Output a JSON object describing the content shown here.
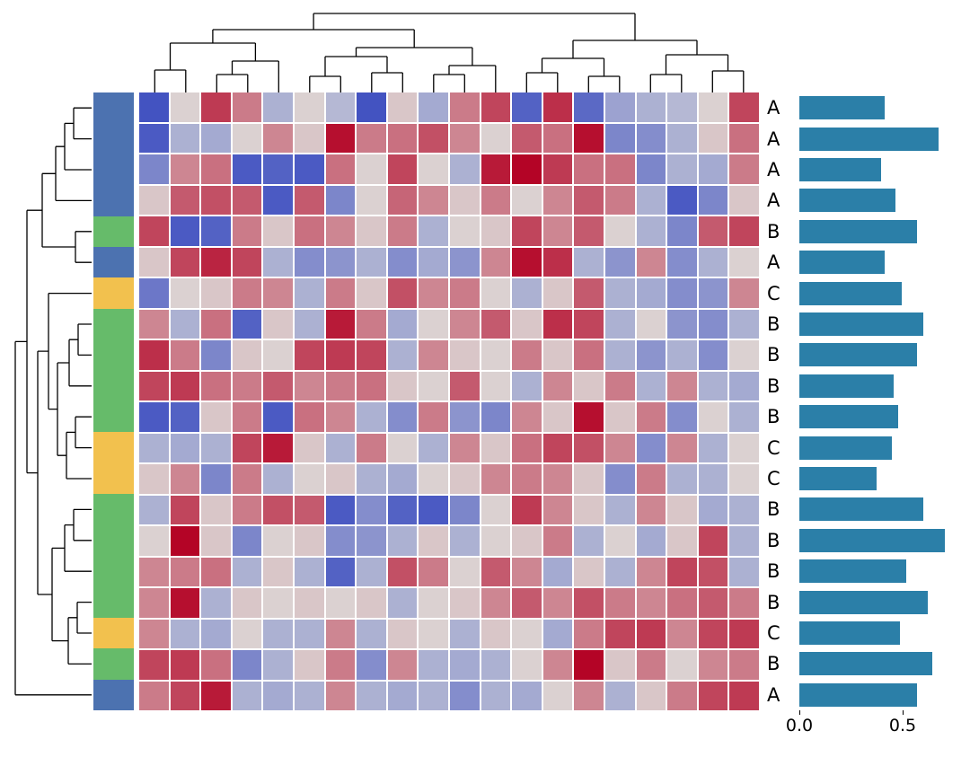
{
  "chart_data": {
    "type": "clustermap",
    "title": "",
    "heatmap": {
      "type": "heatmap",
      "n_rows": 20,
      "n_cols": 20,
      "colormap": "coolwarm",
      "vmin": -1,
      "vmax": 1,
      "values": [
        [
          -0.95,
          0.05,
          0.75,
          0.45,
          -0.3,
          0.05,
          -0.25,
          -0.95,
          0.1,
          -0.35,
          0.45,
          0.7,
          -0.85,
          0.8,
          -0.8,
          -0.4,
          -0.3,
          -0.25,
          0.05,
          0.7
        ],
        [
          -0.9,
          -0.3,
          -0.35,
          0.05,
          0.4,
          0.1,
          0.95,
          0.45,
          0.5,
          0.65,
          0.4,
          0.05,
          0.6,
          0.5,
          0.95,
          -0.6,
          -0.55,
          -0.3,
          0.1,
          0.5
        ],
        [
          -0.6,
          0.4,
          0.5,
          -0.9,
          -0.85,
          -0.9,
          0.5,
          0.05,
          0.7,
          0.05,
          -0.3,
          0.9,
          1.0,
          0.75,
          0.5,
          0.5,
          -0.6,
          -0.3,
          -0.35,
          0.45
        ],
        [
          0.1,
          0.6,
          0.65,
          0.6,
          -0.9,
          0.6,
          -0.6,
          0.05,
          0.55,
          0.4,
          0.1,
          0.45,
          0.05,
          0.4,
          0.6,
          0.45,
          -0.3,
          -0.9,
          -0.6,
          0.1
        ],
        [
          0.7,
          -0.9,
          -0.85,
          0.45,
          0.1,
          0.5,
          0.4,
          0.1,
          0.45,
          -0.3,
          0.05,
          0.1,
          0.7,
          0.4,
          0.6,
          0.05,
          -0.3,
          -0.6,
          0.6,
          0.7
        ],
        [
          0.1,
          0.7,
          0.85,
          0.7,
          -0.3,
          -0.55,
          -0.5,
          -0.3,
          -0.55,
          -0.35,
          -0.5,
          0.4,
          0.95,
          0.8,
          -0.3,
          -0.5,
          0.4,
          -0.55,
          -0.3,
          0.05
        ],
        [
          -0.7,
          0.05,
          0.1,
          0.45,
          0.4,
          -0.3,
          0.45,
          0.1,
          0.65,
          0.4,
          0.45,
          0.05,
          -0.3,
          0.1,
          0.6,
          -0.3,
          -0.35,
          -0.55,
          -0.5,
          0.4
        ],
        [
          0.4,
          -0.3,
          0.5,
          -0.85,
          0.1,
          -0.3,
          0.9,
          0.45,
          -0.35,
          0.05,
          0.4,
          0.6,
          0.1,
          0.8,
          0.7,
          -0.3,
          0.05,
          -0.5,
          -0.55,
          -0.3
        ],
        [
          0.8,
          0.45,
          -0.6,
          0.1,
          0.05,
          0.7,
          0.75,
          0.7,
          -0.3,
          0.4,
          0.1,
          0.05,
          0.45,
          0.1,
          0.5,
          -0.3,
          -0.5,
          -0.3,
          -0.55,
          0.05
        ],
        [
          0.7,
          0.75,
          0.5,
          0.45,
          0.6,
          0.4,
          0.45,
          0.5,
          0.1,
          0.05,
          0.6,
          0.05,
          -0.3,
          0.4,
          0.1,
          0.45,
          -0.3,
          0.4,
          -0.3,
          -0.35
        ],
        [
          -0.9,
          -0.85,
          0.1,
          0.45,
          -0.9,
          0.5,
          0.4,
          -0.3,
          -0.55,
          0.45,
          -0.5,
          -0.6,
          0.4,
          0.1,
          0.95,
          0.1,
          0.45,
          -0.55,
          0.05,
          -0.3
        ],
        [
          -0.3,
          -0.35,
          -0.3,
          0.7,
          0.9,
          0.1,
          -0.3,
          0.45,
          0.05,
          -0.3,
          0.4,
          0.1,
          0.5,
          0.7,
          0.65,
          0.4,
          -0.55,
          0.4,
          -0.3,
          0.05
        ],
        [
          0.1,
          0.4,
          -0.6,
          0.45,
          -0.3,
          0.05,
          0.1,
          -0.3,
          -0.35,
          0.05,
          0.1,
          0.4,
          0.45,
          0.4,
          0.1,
          -0.55,
          0.45,
          -0.3,
          -0.3,
          0.05
        ],
        [
          -0.3,
          0.7,
          0.1,
          0.45,
          0.65,
          0.6,
          -0.9,
          -0.55,
          -0.85,
          -0.9,
          -0.6,
          0.05,
          0.75,
          0.4,
          0.1,
          -0.3,
          0.4,
          0.1,
          -0.35,
          -0.3
        ],
        [
          0.05,
          1.0,
          0.1,
          -0.6,
          0.05,
          0.1,
          -0.55,
          -0.5,
          -0.3,
          0.1,
          -0.3,
          0.05,
          0.1,
          0.45,
          -0.3,
          0.05,
          -0.35,
          0.1,
          0.7,
          -0.3
        ],
        [
          0.4,
          0.45,
          0.5,
          -0.3,
          0.1,
          -0.3,
          -0.85,
          -0.3,
          0.65,
          0.45,
          0.05,
          0.6,
          0.4,
          -0.35,
          0.1,
          -0.3,
          0.4,
          0.7,
          0.65,
          -0.3
        ],
        [
          0.4,
          0.95,
          -0.3,
          0.1,
          0.05,
          0.1,
          0.05,
          0.1,
          -0.3,
          0.05,
          0.1,
          0.4,
          0.6,
          0.4,
          0.65,
          0.45,
          0.4,
          0.5,
          0.6,
          0.45
        ],
        [
          0.4,
          -0.3,
          -0.35,
          0.05,
          -0.3,
          -0.3,
          0.4,
          -0.3,
          0.1,
          0.05,
          -0.3,
          0.1,
          0.05,
          -0.35,
          0.45,
          0.7,
          0.75,
          0.4,
          0.7,
          0.75
        ],
        [
          0.7,
          0.75,
          0.5,
          -0.6,
          -0.3,
          0.1,
          0.45,
          -0.55,
          0.4,
          -0.3,
          -0.35,
          -0.3,
          0.05,
          0.4,
          1.0,
          0.1,
          0.45,
          0.05,
          0.4,
          0.45
        ],
        [
          0.45,
          0.7,
          0.9,
          -0.3,
          -0.35,
          -0.3,
          0.4,
          -0.3,
          -0.35,
          -0.3,
          -0.55,
          -0.3,
          -0.35,
          0.05,
          0.4,
          -0.3,
          0.1,
          0.45,
          0.7,
          0.75
        ]
      ]
    },
    "row_labels": [
      "A",
      "A",
      "A",
      "A",
      "B",
      "A",
      "C",
      "B",
      "B",
      "B",
      "B",
      "C",
      "C",
      "B",
      "B",
      "B",
      "B",
      "C",
      "B",
      "A"
    ],
    "row_annotation": {
      "colors_by_label": {
        "A": "#4c72b0",
        "B": "#66bb6a",
        "C": "#f2c14e"
      }
    },
    "bars": {
      "type": "bar",
      "orientation": "horizontal",
      "color": "#2b7fa8",
      "values": [
        0.4,
        0.65,
        0.38,
        0.45,
        0.55,
        0.4,
        0.48,
        0.58,
        0.55,
        0.44,
        0.46,
        0.43,
        0.36,
        0.58,
        0.68,
        0.5,
        0.6,
        0.47,
        0.62,
        0.55
      ],
      "xticks": [
        "0.0",
        "0.5"
      ],
      "xtick_values": [
        0.0,
        0.5
      ],
      "xlim": [
        0,
        0.78
      ]
    },
    "col_dendrogram": {
      "n_leaves": 20,
      "merges": [
        [
          2,
          3,
          20
        ],
        [
          20,
          4,
          35
        ],
        [
          0,
          1,
          25
        ],
        [
          22,
          21,
          55
        ],
        [
          5,
          6,
          18
        ],
        [
          7,
          8,
          22
        ],
        [
          24,
          25,
          40
        ],
        [
          9,
          10,
          20
        ],
        [
          27,
          11,
          30
        ],
        [
          26,
          28,
          50
        ],
        [
          23,
          29,
          70
        ],
        [
          12,
          13,
          22
        ],
        [
          14,
          15,
          18
        ],
        [
          31,
          32,
          38
        ],
        [
          16,
          17,
          20
        ],
        [
          18,
          19,
          24
        ],
        [
          34,
          35,
          42
        ],
        [
          33,
          36,
          58
        ],
        [
          30,
          37,
          88
        ]
      ]
    },
    "row_dendrogram": {
      "n_leaves": 20,
      "merges": [
        [
          0,
          1,
          20
        ],
        [
          20,
          2,
          30
        ],
        [
          21,
          3,
          40
        ],
        [
          4,
          5,
          18
        ],
        [
          22,
          23,
          55
        ],
        [
          7,
          8,
          15
        ],
        [
          25,
          9,
          25
        ],
        [
          10,
          11,
          18
        ],
        [
          27,
          12,
          28
        ],
        [
          26,
          28,
          38
        ],
        [
          6,
          29,
          48
        ],
        [
          13,
          14,
          20
        ],
        [
          31,
          15,
          30
        ],
        [
          16,
          17,
          16
        ],
        [
          33,
          18,
          26
        ],
        [
          32,
          34,
          44
        ],
        [
          30,
          35,
          60
        ],
        [
          24,
          36,
          72
        ],
        [
          37,
          19,
          85
        ]
      ]
    },
    "dendrogram_color": "#000000",
    "grid_gap_color": "#ffffff"
  }
}
